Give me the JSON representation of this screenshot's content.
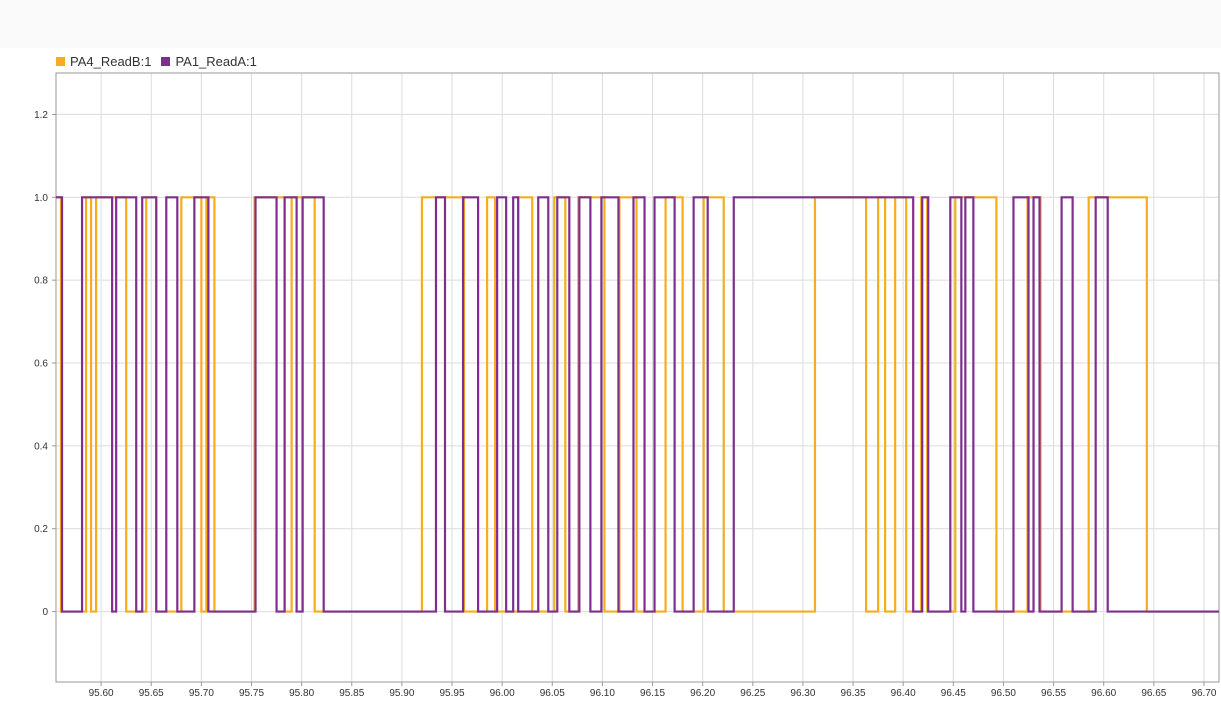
{
  "colors": {
    "background": "#ffffff",
    "grid": "#dcdcdc",
    "axis": "#999999"
  },
  "chart_data": {
    "type": "line",
    "step": true,
    "xlim": [
      95.555,
      96.715
    ],
    "ylim": [
      -0.17,
      1.3
    ],
    "x_ticks": [
      95.6,
      95.65,
      95.7,
      95.75,
      95.8,
      95.85,
      95.9,
      95.95,
      96.0,
      96.05,
      96.1,
      96.15,
      96.2,
      96.25,
      96.3,
      96.35,
      96.4,
      96.45,
      96.5,
      96.55,
      96.6,
      96.65,
      96.7
    ],
    "x_tick_labels": [
      "95.60",
      "95.65",
      "95.70",
      "95.75",
      "95.80",
      "95.85",
      "95.90",
      "95.95",
      "96.00",
      "96.05",
      "96.10",
      "96.15",
      "96.20",
      "96.25",
      "96.30",
      "96.35",
      "96.40",
      "96.45",
      "96.50",
      "96.55",
      "96.60",
      "96.65",
      "96.70"
    ],
    "y_ticks": [
      0,
      0.2,
      0.4,
      0.6,
      0.8,
      1.0,
      1.2
    ],
    "y_tick_labels": [
      "0",
      "0.2",
      "0.4",
      "0.6",
      "0.8",
      "1.0",
      "1.2"
    ],
    "grid": true,
    "legend_position": "top-left",
    "series": [
      {
        "name": "PA4_ReadB:1",
        "color": "#f5ad1e",
        "x": [
          95.555,
          95.56,
          95.56,
          95.585,
          95.585,
          95.59,
          95.59,
          95.595,
          95.595,
          95.625,
          95.625,
          95.645,
          95.645,
          95.655,
          95.655,
          95.68,
          95.68,
          95.7,
          95.7,
          95.705,
          95.705,
          95.713,
          95.713,
          95.753,
          95.753,
          95.783,
          95.783,
          95.79,
          95.79,
          95.813,
          95.813,
          95.92,
          95.92,
          95.962,
          95.962,
          95.985,
          95.985,
          95.993,
          95.993,
          96.016,
          96.016,
          96.03,
          96.03,
          96.052,
          96.052,
          96.063,
          96.063,
          96.076,
          96.076,
          96.102,
          96.102,
          96.117,
          96.117,
          96.134,
          96.134,
          96.163,
          96.163,
          96.18,
          96.18,
          96.201,
          96.201,
          96.221,
          96.221,
          96.312,
          96.312,
          96.363,
          96.363,
          96.375,
          96.375,
          96.382,
          96.382,
          96.392,
          96.392,
          96.403,
          96.403,
          96.418,
          96.418,
          96.424,
          96.424,
          96.452,
          96.452,
          96.493,
          96.493,
          96.524,
          96.524,
          96.537,
          96.537,
          96.585,
          96.585,
          96.643,
          96.643,
          96.715
        ],
        "y": [
          1,
          1,
          0,
          0,
          1,
          1,
          0,
          0,
          1,
          1,
          0,
          0,
          1,
          1,
          0,
          0,
          1,
          1,
          0,
          0,
          1,
          1,
          0,
          0,
          1,
          1,
          0,
          0,
          1,
          1,
          0,
          0,
          1,
          1,
          0,
          0,
          1,
          1,
          0,
          0,
          1,
          1,
          0,
          0,
          1,
          1,
          0,
          0,
          1,
          1,
          0,
          0,
          1,
          1,
          0,
          0,
          1,
          1,
          0,
          0,
          1,
          1,
          0,
          0,
          1,
          1,
          0,
          0,
          1,
          1,
          0,
          0,
          1,
          1,
          0,
          0,
          1,
          1,
          0,
          0,
          1,
          1,
          0,
          0,
          1,
          1,
          0,
          0,
          1,
          1,
          0,
          0
        ]
      },
      {
        "name": "PA1_ReadA:1",
        "color": "#7e2f8e",
        "x": [
          95.555,
          95.561,
          95.561,
          95.581,
          95.581,
          95.611,
          95.611,
          95.615,
          95.615,
          95.635,
          95.635,
          95.641,
          95.641,
          95.655,
          95.655,
          95.665,
          95.665,
          95.676,
          95.676,
          95.693,
          95.693,
          95.707,
          95.707,
          95.754,
          95.754,
          95.775,
          95.775,
          95.783,
          95.783,
          95.795,
          95.795,
          95.801,
          95.801,
          95.822,
          95.822,
          95.934,
          95.934,
          95.943,
          95.943,
          95.961,
          95.961,
          95.976,
          95.976,
          95.995,
          95.995,
          96.004,
          96.004,
          96.011,
          96.011,
          96.016,
          96.016,
          96.036,
          96.036,
          96.046,
          96.046,
          96.055,
          96.055,
          96.067,
          96.067,
          96.077,
          96.077,
          96.088,
          96.088,
          96.099,
          96.099,
          96.116,
          96.116,
          96.131,
          96.131,
          96.142,
          96.142,
          96.152,
          96.152,
          96.172,
          96.172,
          96.191,
          96.191,
          96.205,
          96.205,
          96.231,
          96.231,
          96.41,
          96.41,
          96.419,
          96.419,
          96.425,
          96.425,
          96.447,
          96.447,
          96.458,
          96.458,
          96.462,
          96.462,
          96.47,
          96.47,
          96.51,
          96.51,
          96.525,
          96.525,
          96.53,
          96.53,
          96.536,
          96.536,
          96.558,
          96.558,
          96.569,
          96.569,
          96.592,
          96.592,
          96.604,
          96.604,
          96.715
        ],
        "y": [
          1,
          1,
          0,
          0,
          1,
          1,
          0,
          0,
          1,
          1,
          0,
          0,
          1,
          1,
          0,
          0,
          1,
          1,
          0,
          0,
          1,
          1,
          0,
          0,
          1,
          1,
          0,
          0,
          1,
          1,
          0,
          0,
          1,
          1,
          0,
          0,
          1,
          1,
          0,
          0,
          1,
          1,
          0,
          0,
          1,
          1,
          0,
          0,
          1,
          1,
          0,
          0,
          1,
          1,
          0,
          0,
          1,
          1,
          0,
          0,
          1,
          1,
          0,
          0,
          1,
          1,
          0,
          0,
          1,
          1,
          0,
          0,
          1,
          1,
          0,
          0,
          1,
          1,
          0,
          0,
          1,
          1,
          0,
          0,
          1,
          1,
          0,
          0,
          1,
          1,
          0,
          0,
          1,
          1,
          0,
          0,
          1,
          1,
          0,
          0,
          1,
          1,
          0,
          0,
          1,
          1,
          0,
          0,
          1,
          1,
          0,
          0
        ]
      }
    ]
  }
}
